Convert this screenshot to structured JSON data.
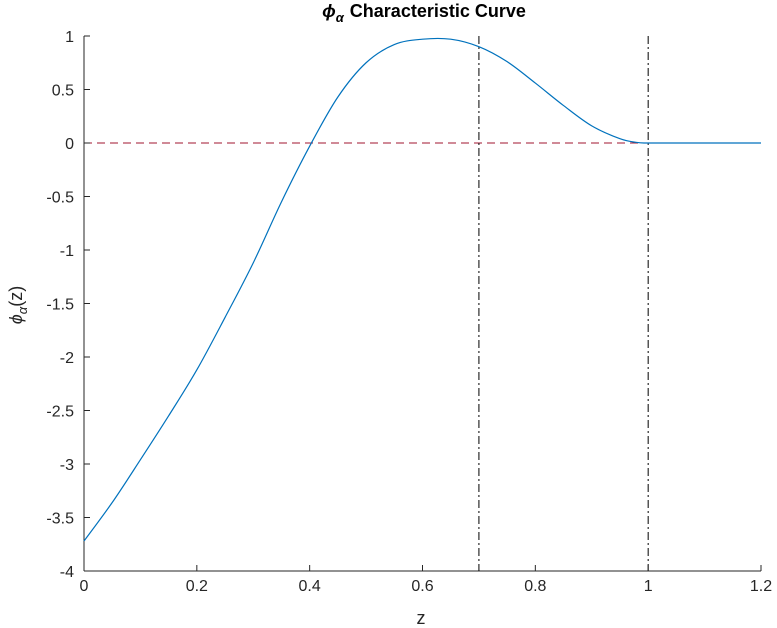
{
  "chart_data": {
    "type": "line",
    "title_symbol": "ϕ",
    "title_subscript": "α",
    "title_text": "Characteristic Curve",
    "xlabel": "z",
    "ylabel_symbol": "ϕ",
    "ylabel_subscript": "α",
    "ylabel_arg": "(z)",
    "xlim": [
      0,
      1.2
    ],
    "ylim": [
      -4,
      1
    ],
    "grid": false,
    "x_ticks": [
      "0",
      "0.2",
      "0.4",
      "0.6",
      "0.8",
      "1",
      "1.2"
    ],
    "x_tick_values": [
      0,
      0.2,
      0.4,
      0.6,
      0.8,
      1.0,
      1.2
    ],
    "y_ticks": [
      "1",
      "0.5",
      "0",
      "-0.5",
      "-1",
      "-1.5",
      "-2",
      "-2.5",
      "-3",
      "-3.5",
      "-4"
    ],
    "y_tick_values": [
      1,
      0.5,
      0,
      -0.5,
      -1,
      -1.5,
      -2,
      -2.5,
      -3,
      -3.5,
      -4
    ],
    "series": [
      {
        "color": "#0072bd",
        "style": "solid",
        "x": [
          0.0,
          0.05,
          0.1,
          0.15,
          0.2,
          0.25,
          0.3,
          0.35,
          0.4,
          0.45,
          0.5,
          0.55,
          0.6,
          0.65,
          0.7,
          0.75,
          0.8,
          0.85,
          0.9,
          0.95,
          0.98,
          1.0,
          1.05,
          1.1,
          1.15,
          1.2
        ],
        "y": [
          -3.72,
          -3.36,
          -2.96,
          -2.55,
          -2.12,
          -1.63,
          -1.12,
          -0.55,
          -0.03,
          0.43,
          0.75,
          0.92,
          0.97,
          0.97,
          0.9,
          0.76,
          0.56,
          0.35,
          0.16,
          0.04,
          0.005,
          0.0,
          0.0,
          0.0,
          0.0,
          0.0
        ]
      }
    ],
    "reference_lines": [
      {
        "orientation": "horizontal",
        "value": 0,
        "color": "#a2142f",
        "style": "dashed"
      },
      {
        "orientation": "vertical",
        "value": 0.7,
        "color": "#000000",
        "style": "dash-dot"
      },
      {
        "orientation": "vertical",
        "value": 1.0,
        "color": "#000000",
        "style": "dash-dot"
      }
    ]
  }
}
